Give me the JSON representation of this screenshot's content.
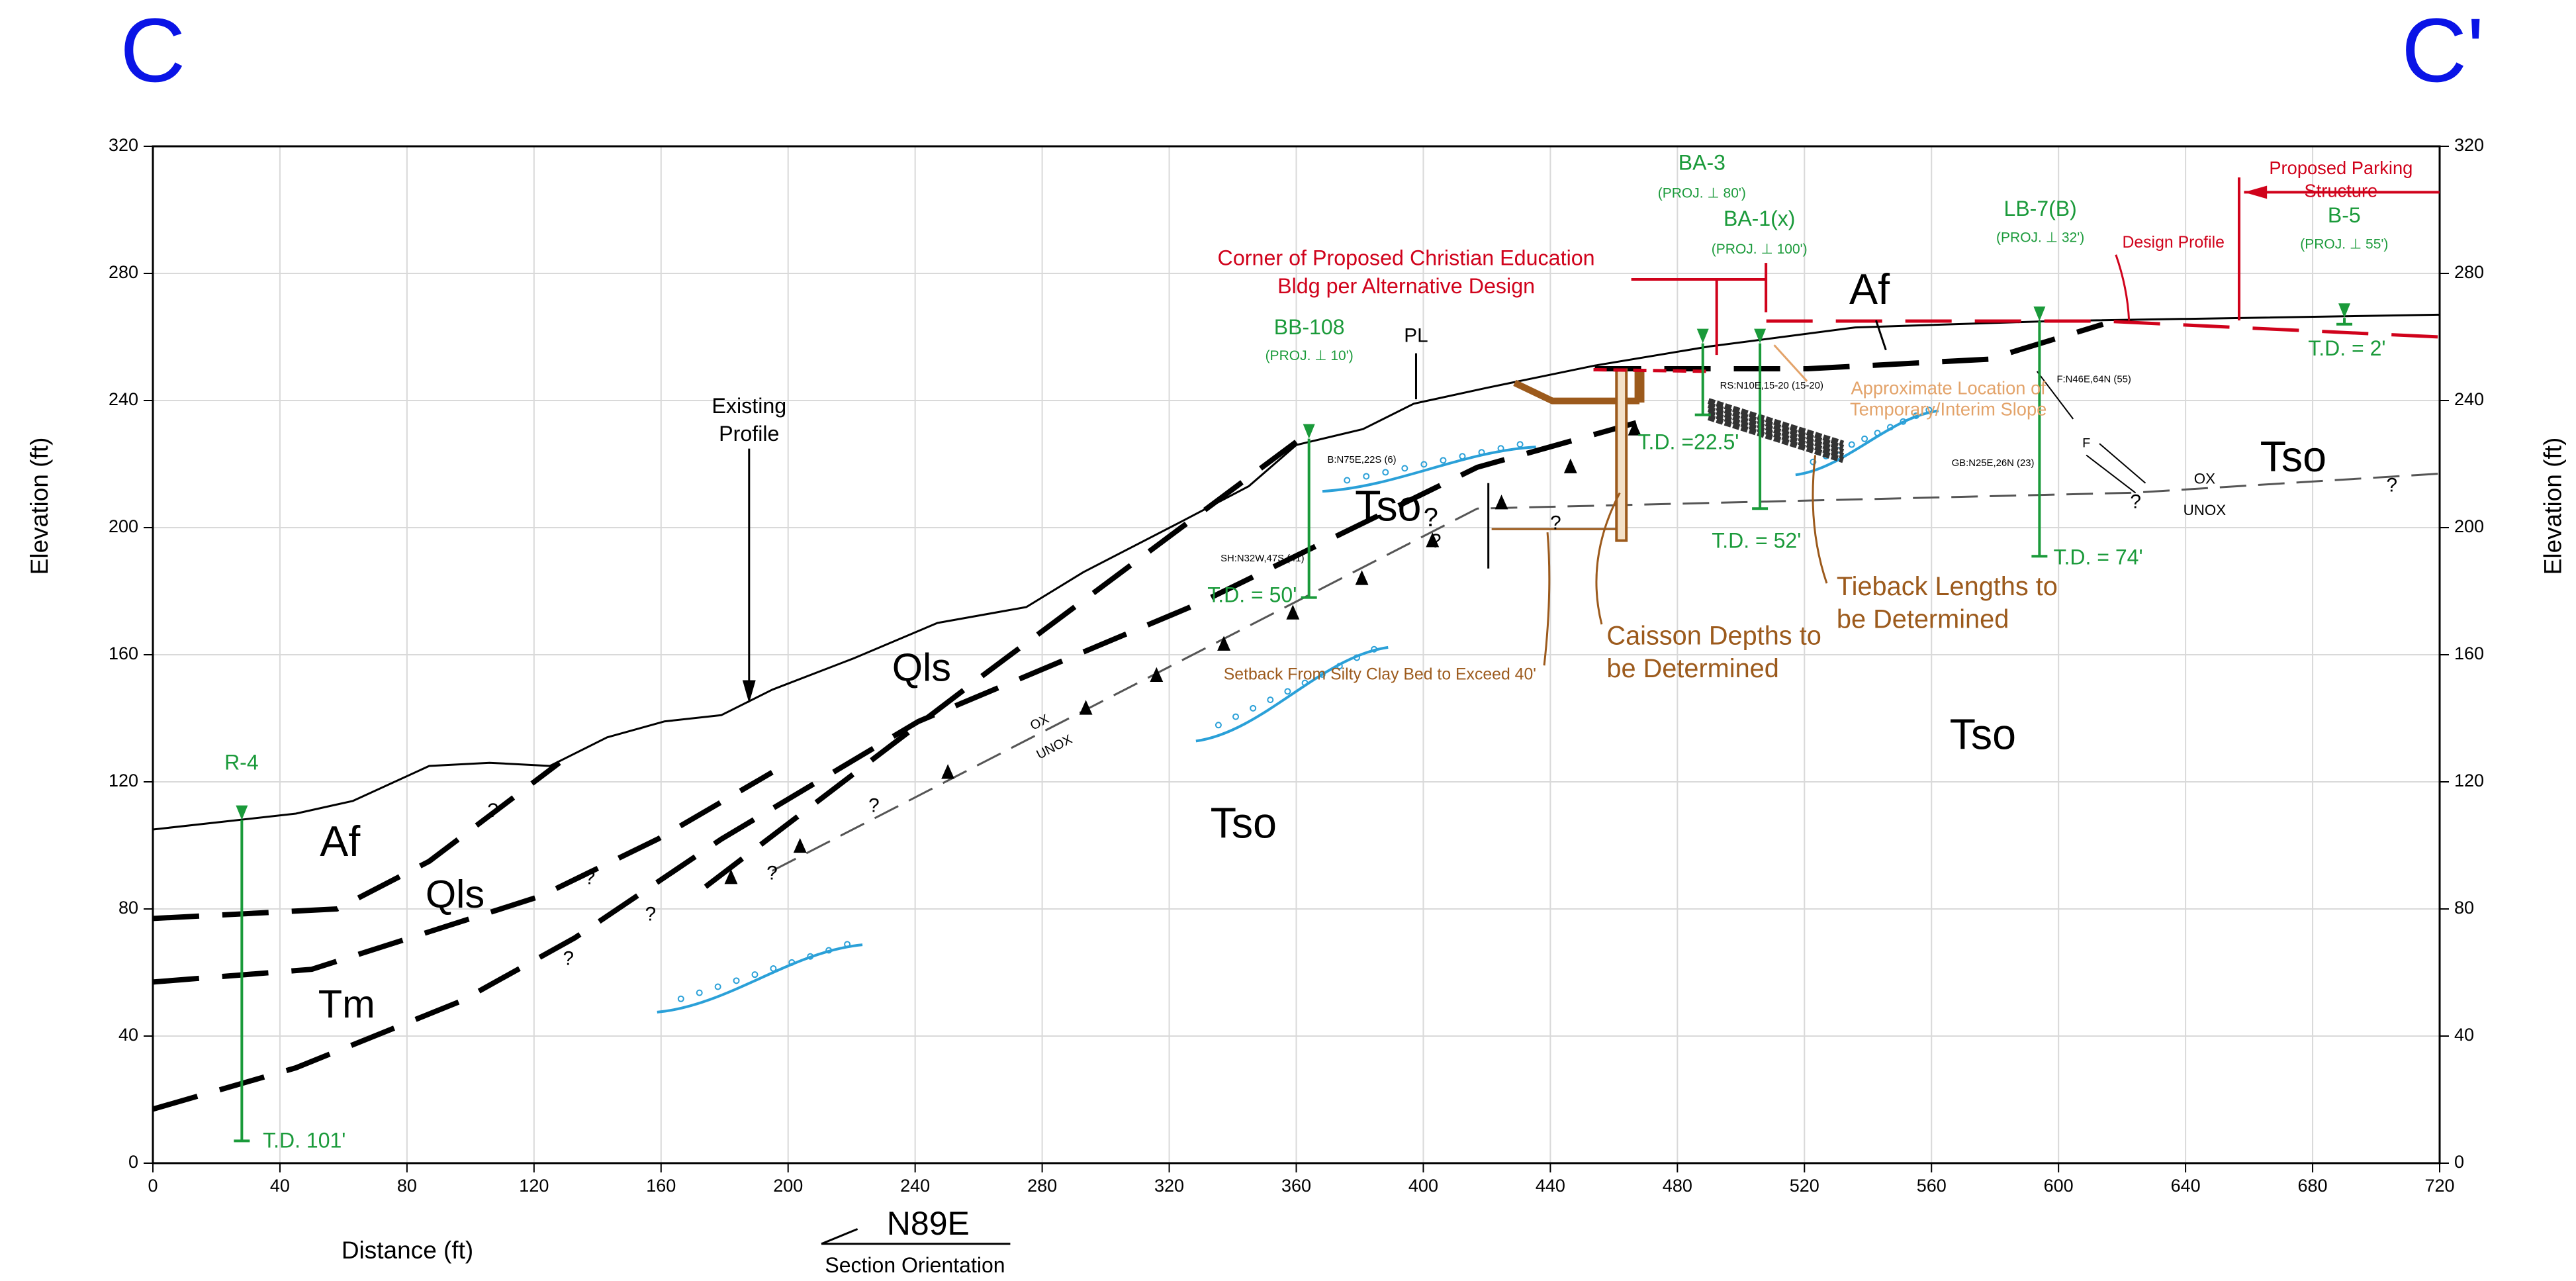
{
  "chart_data": {
    "type": "cross-section",
    "title_left": "C",
    "title_right": "C'",
    "title_color": "#0a14e6",
    "xlabel": "Distance (ft)",
    "ylabel": "Elevation (ft)",
    "y2label": "Elevation (ft)",
    "orientation": "N89E",
    "orientation_label": "Section Orientation",
    "xlim": [
      0,
      720
    ],
    "ylim": [
      0,
      320
    ],
    "xticks": [
      0,
      40,
      80,
      120,
      160,
      200,
      240,
      280,
      320,
      360,
      400,
      440,
      480,
      520,
      560,
      600,
      640,
      680,
      720
    ],
    "yticks": [
      0,
      40,
      80,
      120,
      160,
      200,
      240,
      280,
      320
    ],
    "grid": true,
    "lines": [
      {
        "color": "#000000",
        "style": "solid",
        "width": "thin",
        "x": [
          0,
          45,
          63,
          87,
          106,
          125,
          143,
          161,
          179,
          195,
          221,
          247,
          275,
          293,
          324,
          345,
          360,
          381,
          397,
          420,
          454,
          490,
          536,
          598,
          720
        ],
        "y": [
          105,
          110,
          114,
          125,
          126,
          125,
          134,
          139,
          141,
          149,
          159,
          170,
          175,
          186,
          202,
          213,
          226,
          231,
          239,
          244,
          251,
          257,
          263,
          265,
          267
        ]
      },
      {
        "color": "#000000",
        "style": "dashed",
        "width": "thick",
        "x": [
          0,
          58,
          87,
          128
        ],
        "y": [
          77,
          80,
          95,
          126
        ]
      },
      {
        "color": "#000000",
        "style": "dashed",
        "width": "thick",
        "x": [
          0,
          50,
          122,
          159,
          195
        ],
        "y": [
          57,
          61,
          84,
          102,
          123
        ]
      },
      {
        "color": "#000000",
        "style": "dashed",
        "width": "thick",
        "x": [
          0,
          45,
          97,
          133,
          179,
          241,
          329,
          417,
          467
        ],
        "y": [
          17,
          30,
          51,
          71,
          102,
          139,
          176,
          219,
          233
        ]
      },
      {
        "color": "#000000",
        "style": "dashed",
        "width": "thick",
        "x": [
          174,
          262,
          360
        ],
        "y": [
          87,
          154,
          227
        ]
      },
      {
        "color": "#000000",
        "style": "dashed",
        "width": "thick",
        "x": [
          454,
          521,
          578,
          614
        ],
        "y": [
          250,
          250,
          253,
          264
        ]
      },
      {
        "color": "#d0021b",
        "style": "dashed",
        "width": "medium",
        "x": [
          508,
          614,
          656,
          720
        ],
        "y": [
          265,
          265,
          263,
          260
        ]
      },
      {
        "color": "#555555",
        "style": "dashed",
        "width": "thin",
        "x": [
          195,
          417,
          624,
          720
        ],
        "y": [
          92,
          206,
          211,
          217
        ]
      }
    ],
    "borings": [
      {
        "name": "R-4",
        "td_label": "T.D. 101'",
        "x": 28,
        "top": 108,
        "bottom": 7
      },
      {
        "name": "BB-108",
        "proj": "(PROJ. ⊥  10')",
        "td_label": "T.D. = 50'",
        "x": 364,
        "top": 228,
        "bottom": 178
      },
      {
        "name": "BA-3",
        "proj": "(PROJ. ⊥  80')",
        "td_label": "T.D. =22.5'",
        "x": 488,
        "top": 258,
        "bottom": 235.5
      },
      {
        "name": "BA-1(x)",
        "proj": "(PROJ. ⊥ 100')",
        "td_label": "T.D. = 52'",
        "x": 506,
        "top": 258,
        "bottom": 206
      },
      {
        "name": "LB-7(B)",
        "proj": "(PROJ. ⊥  32')",
        "td_label": "T.D. = 74'",
        "x": 594,
        "top": 265,
        "bottom": 191
      },
      {
        "name": "B-5",
        "proj": "(PROJ. ⊥  55')",
        "td_label": "T.D. = 2'",
        "x": 690,
        "top": 266,
        "bottom": 264
      }
    ],
    "boring_color": "#1a9a3a",
    "annotations": [
      {
        "text": "Existing",
        "color": "#000000"
      },
      {
        "text": "Profile",
        "color": "#000000"
      },
      {
        "text": "Corner of Proposed Christian Education",
        "color": "#d0021b"
      },
      {
        "text": "Bldg per Alternative Design",
        "color": "#d0021b"
      },
      {
        "text": "Proposed Parking",
        "color": "#d0021b"
      },
      {
        "text": "Structure",
        "color": "#d0021b"
      },
      {
        "text": "Design Profile",
        "color": "#d0021b"
      },
      {
        "text": "Approximate Location of",
        "color": "#e3a36a"
      },
      {
        "text": "Temporary/Interim Slope",
        "color": "#e3a36a"
      },
      {
        "text": "Caisson Depths to",
        "color": "#9c5a1c"
      },
      {
        "text": "be Determined",
        "color": "#9c5a1c"
      },
      {
        "text": "Tieback Lengths to",
        "color": "#9c5a1c"
      },
      {
        "text": "be Determined",
        "color": "#9c5a1c"
      },
      {
        "text": "Setback From Silty Clay Bed to Exceed 40'",
        "color": "#9c5a1c"
      },
      {
        "text": "Af",
        "color": "#000000"
      },
      {
        "text": "Qls",
        "color": "#000000"
      },
      {
        "text": "Tm",
        "color": "#000000"
      },
      {
        "text": "Qls",
        "color": "#000000"
      },
      {
        "text": "Tso",
        "color": "#000000"
      },
      {
        "text": "Tso",
        "color": "#000000"
      },
      {
        "text": "Af",
        "color": "#000000"
      },
      {
        "text": "Tso",
        "color": "#000000"
      },
      {
        "text": "Tso",
        "color": "#000000"
      },
      {
        "text": "OX",
        "color": "#000000"
      },
      {
        "text": "UNOX",
        "color": "#000000"
      },
      {
        "text": "OX",
        "color": "#000000"
      },
      {
        "text": "UNOX",
        "color": "#000000"
      },
      {
        "text": "B:N75E,22S (6)",
        "color": "#000000"
      },
      {
        "text": "SH:N32W,47S (41)",
        "color": "#000000"
      },
      {
        "text": "RS:N10E,15-20 (15-20)",
        "color": "#000000"
      },
      {
        "text": "F:N46E,64N (55)",
        "color": "#000000"
      },
      {
        "text": "GB:N25E,26N (23)",
        "color": "#000000"
      },
      {
        "text": "F",
        "color": "#000000"
      },
      {
        "text": "PL",
        "color": "#000000"
      },
      {
        "text": "?",
        "color": "#000000"
      },
      {
        "text": "?",
        "color": "#000000"
      },
      {
        "text": "?",
        "color": "#000000"
      },
      {
        "text": "?",
        "color": "#000000"
      },
      {
        "text": "?",
        "color": "#000000"
      },
      {
        "text": "?",
        "color": "#000000"
      },
      {
        "text": "?",
        "color": "#000000"
      },
      {
        "text": "?",
        "color": "#000000"
      },
      {
        "text": "?",
        "color": "#000000"
      },
      {
        "text": "?",
        "color": "#000000"
      },
      {
        "text": "?",
        "color": "#000000"
      }
    ]
  }
}
